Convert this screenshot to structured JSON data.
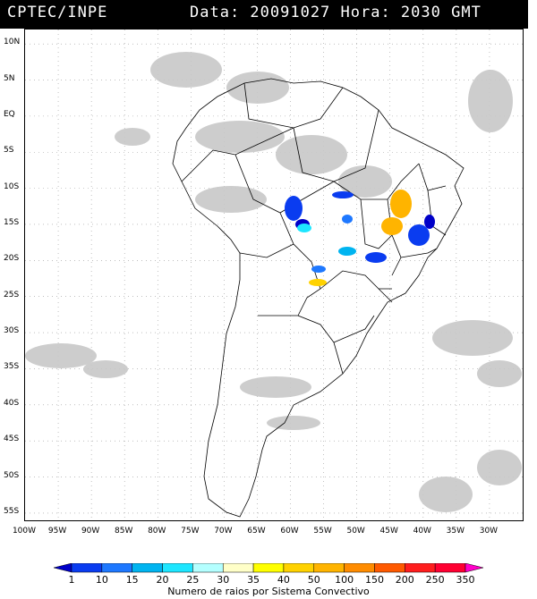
{
  "header": {
    "agency": "CPTEC/INPE",
    "datetime": "Data: 20091027 Hora: 2030 GMT"
  },
  "map": {
    "lat_labels": [
      "10N",
      "5N",
      "EQ",
      "5S",
      "10S",
      "15S",
      "20S",
      "25S",
      "30S",
      "35S",
      "40S",
      "45S",
      "50S",
      "55S"
    ],
    "lon_labels": [
      "100W",
      "95W",
      "90W",
      "85W",
      "80W",
      "75W",
      "70W",
      "65W",
      "60W",
      "55W",
      "50W",
      "45W",
      "40W",
      "35W",
      "30W"
    ],
    "lon_range": [
      -100,
      -25
    ],
    "lat_range": [
      12,
      -56
    ]
  },
  "colorbar": {
    "labels": [
      "1",
      "10",
      "15",
      "20",
      "25",
      "30",
      "35",
      "40",
      "50",
      "100",
      "150",
      "200",
      "250",
      "350"
    ],
    "colors": [
      "#0000c8",
      "#0a3cf0",
      "#1e78ff",
      "#00b4f0",
      "#1ee6ff",
      "#b4ffff",
      "#ffffc8",
      "#ffff00",
      "#ffd200",
      "#ffb400",
      "#ff8c00",
      "#ff5a00",
      "#ff1e1e",
      "#ff0032",
      "#ff00c8"
    ],
    "caption": "Numero de raios por Sistema Convectivo"
  }
}
